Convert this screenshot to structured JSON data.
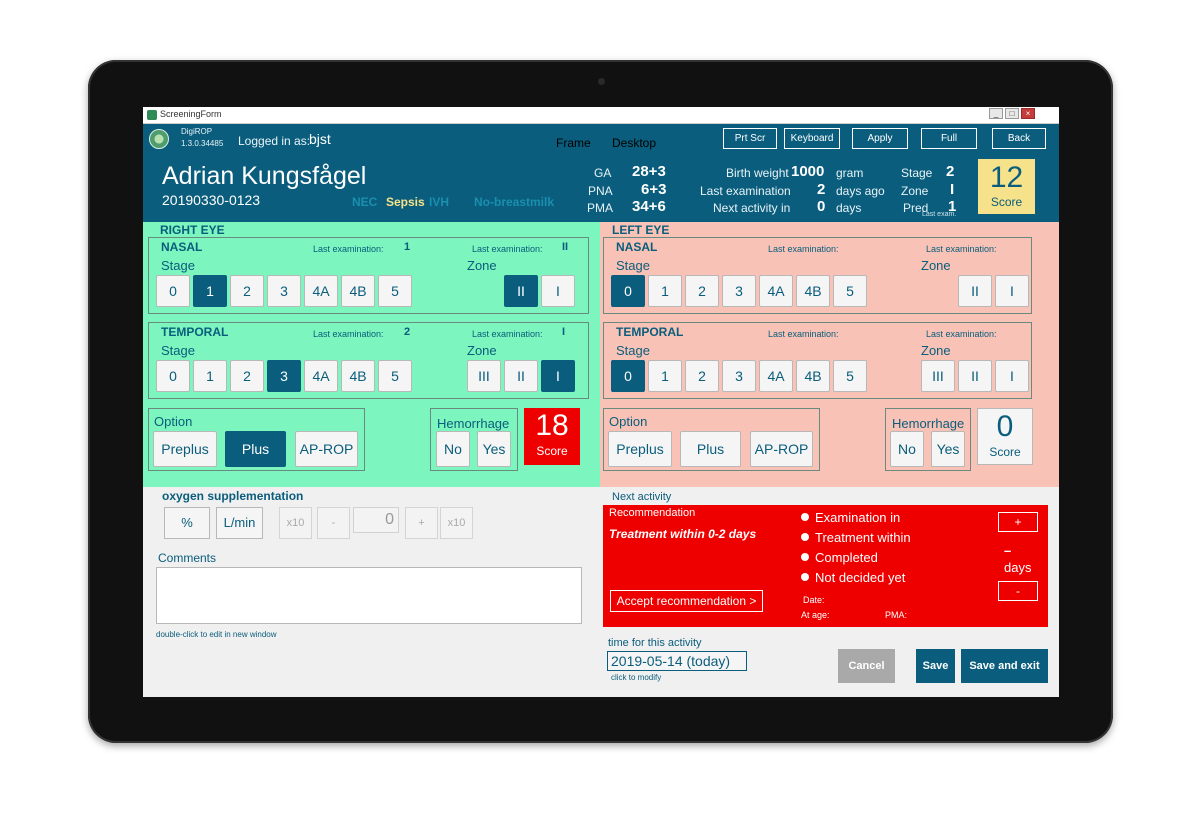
{
  "window": {
    "title": "ScreeningForm"
  },
  "app": {
    "name": "DigiROP",
    "version": "1.3.0.34485"
  },
  "header": {
    "logged_in_label": "Logged in as:",
    "user": "bjst",
    "frame": "Frame",
    "desktop": "Desktop",
    "buttons": {
      "prtscr": "Prt Scr",
      "keyboard": "Keyboard",
      "apply": "Apply",
      "full": "Full",
      "back": "Back"
    }
  },
  "patient": {
    "name": "Adrian Kungsfågel",
    "id": "20190330-0123",
    "flags": [
      {
        "text": "NEC",
        "color": "#1a8fb0"
      },
      {
        "text": "Sepsis",
        "color": "#f6e28a"
      },
      {
        "text": "IVH",
        "color": "#1a8fb0"
      },
      {
        "text": "No-breastmilk",
        "color": "#1a8fb0"
      }
    ],
    "ga_label": "GA",
    "ga": "28+3",
    "pna_label": "PNA",
    "pna": "6+3",
    "pma_label": "PMA",
    "pma": "34+6",
    "birth_weight_label": "Birth weight",
    "birth_weight": "1000",
    "birth_weight_unit": "gram",
    "last_exam_label": "Last examination",
    "last_exam": "2",
    "last_exam_unit": "days ago",
    "next_activity_label": "Next activity in",
    "next_activity": "0",
    "next_activity_unit": "days",
    "stage_label": "Stage",
    "stage": "2",
    "zone_label": "Zone",
    "zone": "I",
    "pred_label": "Pred",
    "pred": "1",
    "score": "12",
    "score_label": "Score",
    "last_exam_tiny": "Last exam."
  },
  "common": {
    "stage_label": "Stage",
    "zone_label": "Zone",
    "last_exam_label": "Last examination:",
    "stage_options": [
      "0",
      "1",
      "2",
      "3",
      "4A",
      "4B",
      "5"
    ],
    "option_label": "Option",
    "hemorrhage_label": "Hemorrhage",
    "options": [
      "Preplus",
      "Plus",
      "AP-ROP"
    ],
    "hemorrhage_options": [
      "No",
      "Yes"
    ],
    "score_label": "Score"
  },
  "right_eye": {
    "title": "RIGHT EYE",
    "nasal": {
      "title": "NASAL",
      "last_stage": "1",
      "last_zone": "II",
      "zones": [
        "II",
        "I"
      ],
      "selected_stage": "1",
      "selected_zone": "II"
    },
    "temporal": {
      "title": "TEMPORAL",
      "last_stage": "2",
      "last_zone": "I",
      "zones": [
        "III",
        "II",
        "I"
      ],
      "selected_stage": "3",
      "selected_zone": "I"
    },
    "selected_option": "Plus",
    "score": "18"
  },
  "left_eye": {
    "title": "LEFT EYE",
    "nasal": {
      "title": "NASAL",
      "zones": [
        "II",
        "I"
      ],
      "selected_stage": "0"
    },
    "temporal": {
      "title": "TEMPORAL",
      "zones": [
        "III",
        "II",
        "I"
      ],
      "selected_stage": "0"
    },
    "score": "0"
  },
  "oxygen": {
    "title": "oxygen supplementation",
    "unit_percent": "%",
    "unit_lmin": "L/min",
    "x10": "x10",
    "minus": "-",
    "plus": "+",
    "value": "0"
  },
  "comments": {
    "label": "Comments",
    "hint": "double-click to edit in new window"
  },
  "next_activity": {
    "title": "Next activity",
    "recommendation_label": "Recommendation",
    "recommendation": "Treatment within 0-2 days",
    "accept": "Accept recommendation  >",
    "radios": [
      "Examination in",
      "Treatment within",
      "Completed",
      "Not decided yet"
    ],
    "plus": "+",
    "minus": "-",
    "dash": "–",
    "days": "days",
    "date_label": "Date:",
    "at_age_label": "At age:",
    "pma_label": "PMA:",
    "time_label": "time for this activity",
    "time_value": "2019-05-14 (today)",
    "time_hint": "click to modify"
  },
  "actions": {
    "cancel": "Cancel",
    "save": "Save",
    "save_exit": "Save and exit"
  },
  "colors": {
    "primary": "#0a5d7c",
    "right_eye_bg": "#7cf5be",
    "left_eye_bg": "#f8c3b6",
    "alert_red": "#ee0000",
    "score_yellow": "#f6e28a",
    "cancel_gray": "#a9a9a9"
  }
}
